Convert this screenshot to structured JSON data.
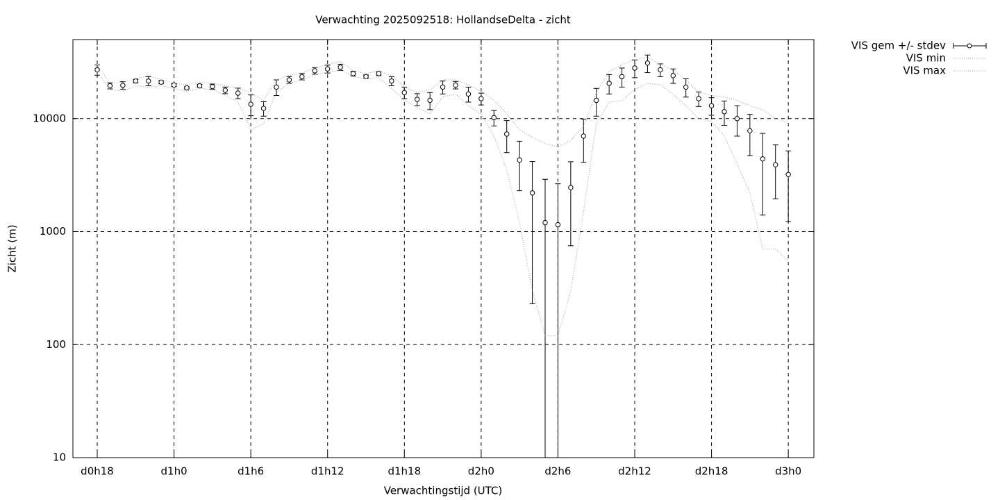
{
  "chart_data": {
    "type": "errorbar",
    "title": "Verwachting 2025092518: HollandseDelta - zicht",
    "xlabel": "Verwachtingstijd (UTC)",
    "ylabel": "Zicht (m)",
    "x": [
      18,
      19,
      20,
      21,
      22,
      23,
      24,
      25,
      26,
      27,
      28,
      29,
      30,
      31,
      32,
      33,
      34,
      35,
      36,
      37,
      38,
      39,
      40,
      41,
      42,
      43,
      44,
      45,
      46,
      47,
      48,
      49,
      50,
      51,
      52,
      53,
      54,
      55,
      56,
      57,
      58,
      59,
      60,
      61,
      62,
      63,
      64,
      65,
      66,
      67,
      68,
      69,
      70,
      71,
      72
    ],
    "xlim": [
      16.1,
      74
    ],
    "xticks": [
      {
        "value": 18,
        "label": "d0h18"
      },
      {
        "value": 24,
        "label": "d1h0"
      },
      {
        "value": 30,
        "label": "d1h6"
      },
      {
        "value": 36,
        "label": "d1h12"
      },
      {
        "value": 42,
        "label": "d1h18"
      },
      {
        "value": 48,
        "label": "d2h0"
      },
      {
        "value": 54,
        "label": "d2h6"
      },
      {
        "value": 60,
        "label": "d2h12"
      },
      {
        "value": 66,
        "label": "d2h18"
      },
      {
        "value": 72,
        "label": "d3h0"
      }
    ],
    "ylim": [
      10,
      50000
    ],
    "yticks": [
      10,
      100,
      1000,
      10000
    ],
    "log_y": true,
    "grid": true,
    "legend": "outside-top-right",
    "series": [
      {
        "name": "VIS gem +/- stdev",
        "color": "#000000",
        "values": [
          27000,
          19500,
          19700,
          21500,
          21500,
          21000,
          19800,
          18700,
          19500,
          19200,
          17800,
          16800,
          13400,
          12300,
          19000,
          22000,
          23500,
          26500,
          27500,
          28500,
          25000,
          23500,
          25000,
          21500,
          17000,
          14800,
          14500,
          19000,
          19800,
          16500,
          15000,
          10200,
          7300,
          4300,
          2200,
          1200,
          1150,
          2450,
          7000,
          14500,
          20500,
          23500,
          28000,
          31000,
          27000,
          24000,
          19000,
          15000,
          13000,
          11500,
          10000,
          7800,
          4400,
          3900,
          3200
        ],
        "errors": [
          2800,
          1200,
          1500,
          800,
          2000,
          700,
          600,
          400,
          600,
          1000,
          1200,
          1800,
          2800,
          1800,
          3000,
          1500,
          1500,
          1800,
          2200,
          1800,
          1200,
          800,
          1000,
          2000,
          2000,
          1800,
          2500,
          2500,
          1500,
          2500,
          1800,
          1600,
          2300,
          2000,
          1970,
          1700,
          1500,
          1700,
          2900,
          4000,
          4000,
          4500,
          5000,
          5500,
          3500,
          3500,
          3500,
          2200,
          2300,
          2800,
          3000,
          3100,
          3000,
          1950,
          1975
        ]
      },
      {
        "name": "VIS min",
        "color": "#999999",
        "values": [
          26000,
          18000,
          17500,
          19500,
          19000,
          19500,
          18500,
          17500,
          18500,
          18000,
          16000,
          14000,
          8000,
          9000,
          17000,
          20500,
          22000,
          24500,
          25500,
          27000,
          23500,
          22500,
          23000,
          18500,
          14500,
          12500,
          11000,
          15500,
          16500,
          13000,
          11000,
          7000,
          3500,
          1200,
          300,
          120,
          120,
          300,
          1500,
          9000,
          14000,
          14500,
          18000,
          20500,
          20000,
          16500,
          13000,
          10000,
          9500,
          7000,
          4000,
          2200,
          700,
          700,
          550
        ]
      },
      {
        "name": "VIS max",
        "color": "#999999",
        "values": [
          30000,
          20500,
          21000,
          22500,
          24000,
          22000,
          20500,
          20000,
          21000,
          20500,
          19500,
          18500,
          17000,
          14500,
          22000,
          24000,
          25500,
          28000,
          30000,
          32000,
          26500,
          25000,
          26500,
          24000,
          19000,
          17000,
          18000,
          22000,
          22000,
          20000,
          17500,
          14500,
          11000,
          8000,
          6800,
          6000,
          5600,
          6400,
          8500,
          17000,
          26000,
          30000,
          33000,
          35000,
          30000,
          27000,
          22000,
          17000,
          16000,
          15500,
          14500,
          13000,
          12000,
          10000,
          9200
        ]
      }
    ]
  }
}
